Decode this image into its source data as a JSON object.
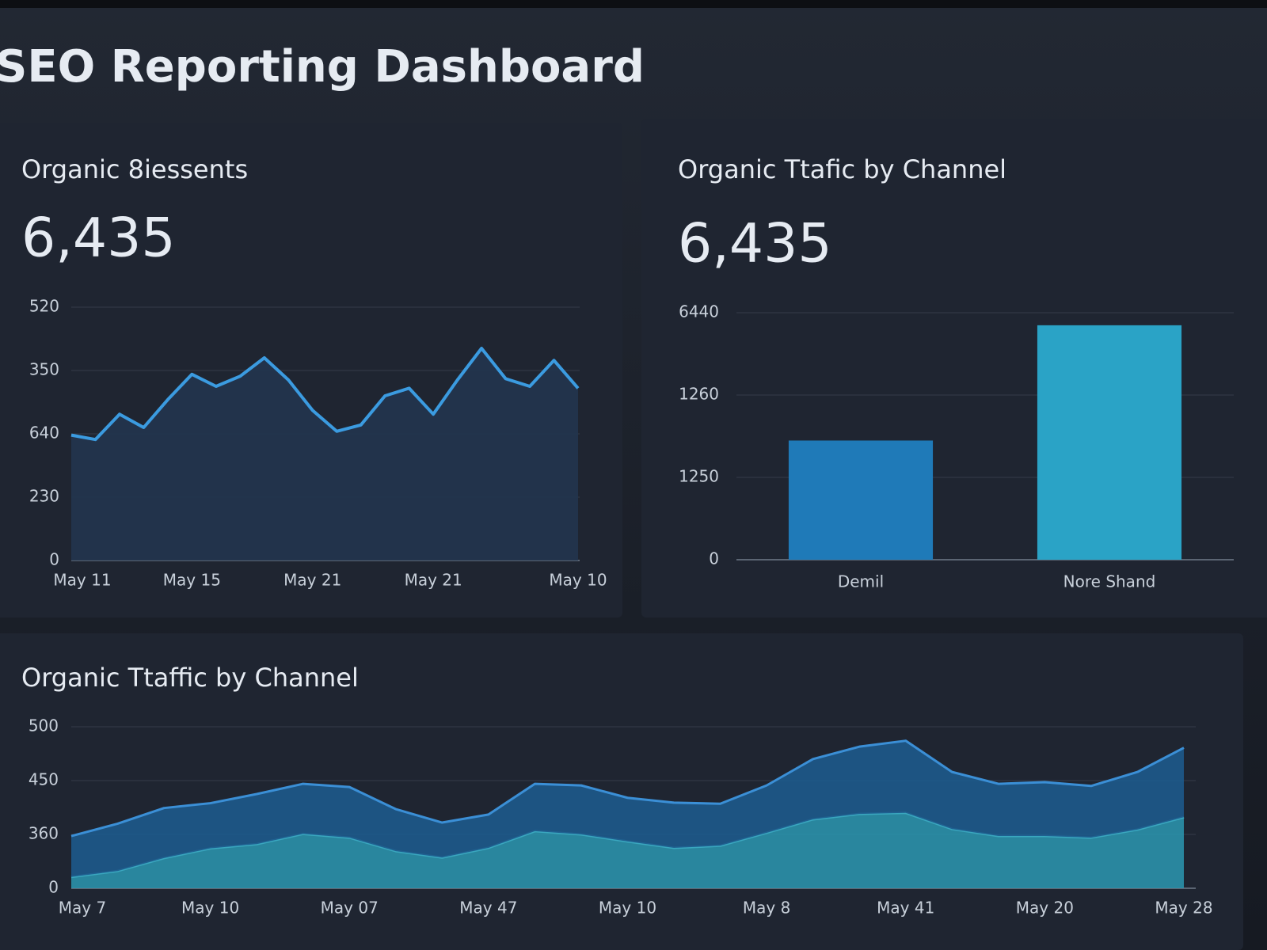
{
  "title": "SEO Reporting Dashboard",
  "chart_data": [
    {
      "type": "area",
      "title": "Organic 8iessents",
      "kpi": "6,435",
      "categories": [
        "May 11",
        null,
        null,
        null,
        null,
        "May 15",
        null,
        null,
        null,
        null,
        "May 21",
        null,
        null,
        null,
        null,
        "May 21",
        null,
        null,
        null,
        null,
        null,
        "May 10"
      ],
      "values": [
        198,
        191,
        231,
        210,
        254,
        294,
        275,
        291,
        320,
        285,
        237,
        204,
        214,
        260,
        272,
        231,
        285,
        335,
        287,
        275,
        316,
        272
      ],
      "color": "#3b9be0",
      "ylim": [
        0,
        400
      ],
      "yticks": [
        0,
        {
          "value": 100,
          "label": "230"
        },
        {
          "value": 200,
          "label": "640"
        },
        {
          "value": 300,
          "label": "350"
        },
        {
          "value": 400,
          "label": "520"
        }
      ],
      "grid": true
    },
    {
      "type": "bar",
      "title": "Organic Ttafic by Channel",
      "kpi": "6,435",
      "categories": [
        "Demil",
        "Nore Shand"
      ],
      "values": [
        2895,
        5695
      ],
      "colors": [
        "#1f7ab8",
        "#2aa3c6"
      ],
      "ylim": [
        0,
        6000
      ],
      "yticks": [
        0,
        {
          "value": 2000,
          "label": "1250"
        },
        {
          "value": 4000,
          "label": "1260"
        },
        {
          "value": 6000,
          "label": "6440"
        }
      ],
      "grid": true
    },
    {
      "type": "area",
      "stacked": true,
      "title": "Organic Ttaffic by Channel",
      "categories": [
        "May 7",
        null,
        null,
        "May 10",
        null,
        null,
        "May 07",
        null,
        null,
        "May 47",
        null,
        null,
        "May 10",
        null,
        null,
        "May 8",
        null,
        null,
        "May 41",
        null,
        null,
        "May 20",
        null,
        null,
        "May 28"
      ],
      "series": [
        {
          "color": "#2a91ab",
          "values": [
            21,
            32,
            56,
            74,
            82,
            101,
            94,
            69,
            57,
            75,
            106,
            100,
            87,
            75,
            79,
            103,
            128,
            138,
            140,
            110,
            97,
            97,
            94,
            109,
            132
          ]
        },
        {
          "color": "#1d5a8c",
          "values": [
            76,
            88,
            93,
            84,
            93,
            93,
            94,
            78,
            65,
            62,
            88,
            91,
            81,
            84,
            78,
            88,
            112,
            125,
            134,
            106,
            97,
            100,
            96,
            107,
            129
          ]
        }
      ],
      "ylim": [
        0,
        300
      ],
      "yticks": [
        0,
        {
          "value": 100,
          "label": "360"
        },
        {
          "value": 200,
          "label": "450"
        },
        {
          "value": 300,
          "label": "500"
        }
      ],
      "grid": true
    }
  ]
}
